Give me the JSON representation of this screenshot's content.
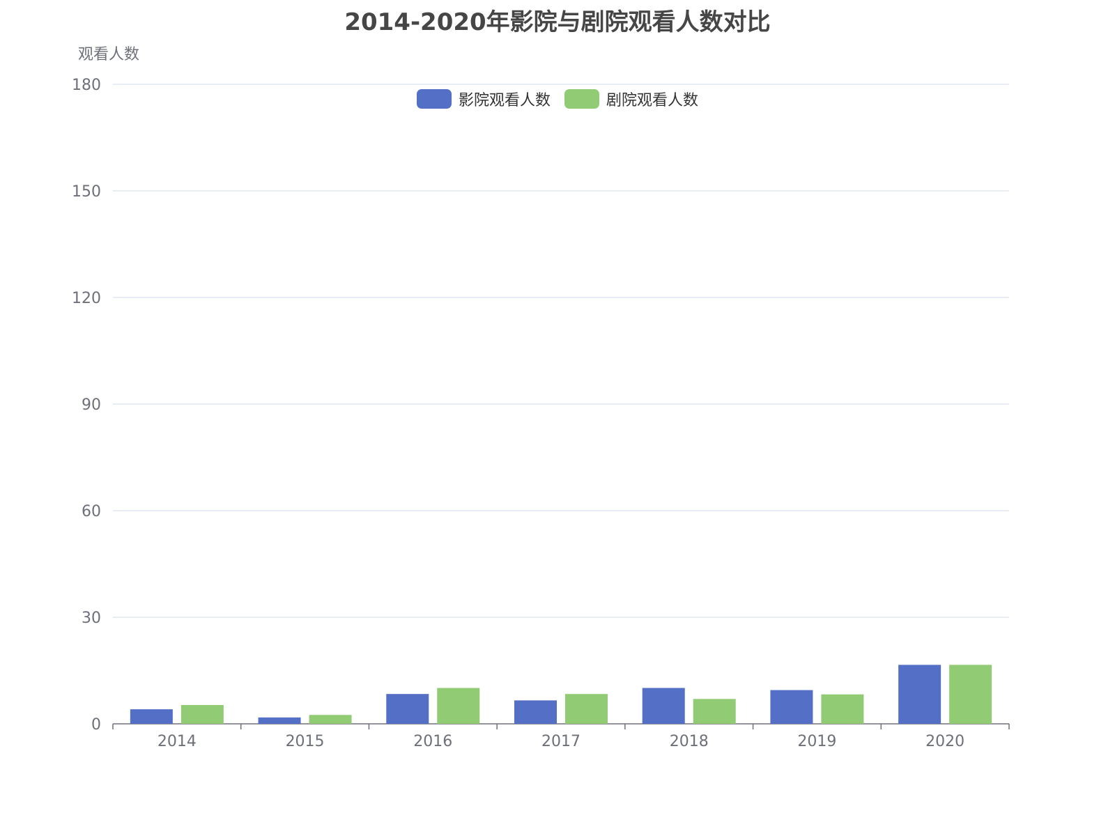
{
  "title": "2014-2020年影院与剧院观看人数对比",
  "legend": [
    {
      "name": "影院观看人数",
      "color": "#5470c6"
    },
    {
      "name": "剧院观看人数",
      "color": "#91cc75"
    }
  ],
  "chart_data": {
    "type": "bar",
    "title": "2014-2020年影院与剧院观看人数对比",
    "xlabel": "",
    "ylabel": "观看人数",
    "ylim": [
      0,
      180
    ],
    "yticks": [
      0,
      30,
      60,
      90,
      120,
      150,
      180
    ],
    "categories": [
      "2014",
      "2015",
      "2016",
      "2017",
      "2018",
      "2019",
      "2020"
    ],
    "series": [
      {
        "name": "影院观看人数",
        "color": "#5470c6",
        "values": [
          4.1,
          1.8,
          8.4,
          6.6,
          10.1,
          9.5,
          16.6
        ]
      },
      {
        "name": "剧院观看人数",
        "color": "#91cc75",
        "values": [
          5.3,
          2.5,
          10.1,
          8.4,
          7.0,
          8.3,
          16.6
        ]
      }
    ],
    "grid": true,
    "legend_position": "top-center"
  }
}
